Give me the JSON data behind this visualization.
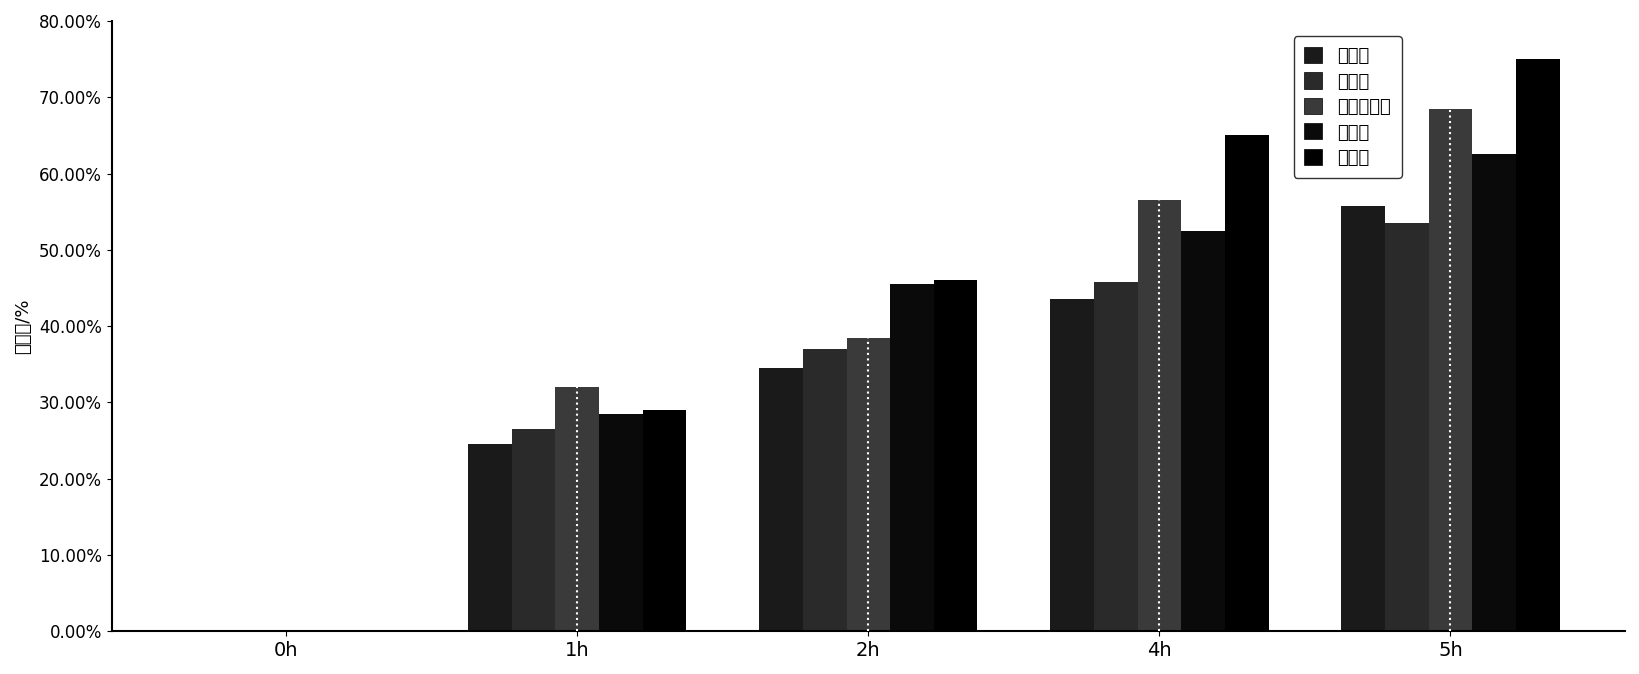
{
  "categories": [
    "0h",
    "1h",
    "2h",
    "4h",
    "5h"
  ],
  "series": {
    "乙草胺": [
      0.0,
      0.245,
      0.345,
      0.435,
      0.558
    ],
    "甲草胺": [
      0.0,
      0.265,
      0.37,
      0.458,
      0.535
    ],
    "异丙甲草胺": [
      0.0,
      0.32,
      0.385,
      0.565,
      0.685
    ],
    "丙草胺": [
      0.0,
      0.285,
      0.455,
      0.525,
      0.625
    ],
    "丁草胺": [
      0.0,
      0.29,
      0.46,
      0.65,
      0.75
    ]
  },
  "bar_colors": [
    "#1a1a1a",
    "#2a2a2a",
    "#3a3a3a",
    "#0a0a0a",
    "#000000"
  ],
  "ylabel": "降解率/%",
  "ylim": [
    0.0,
    0.8
  ],
  "yticks": [
    0.0,
    0.1,
    0.2,
    0.3,
    0.4,
    0.5,
    0.6,
    0.7,
    0.8
  ],
  "ytick_labels": [
    "0.00%",
    "10.00%",
    "20.00%",
    "30.00%",
    "40.00%",
    "50.00%",
    "60.00%",
    "70.00%",
    "80.00%"
  ],
  "legend_labels": [
    "乙草胺",
    "甲草胺",
    "异丙甲草胺",
    "丙草胺",
    "丁草胺"
  ],
  "background_color": "#ffffff",
  "bar_width": 0.15,
  "figsize": [
    16.39,
    6.74
  ],
  "dpi": 100
}
